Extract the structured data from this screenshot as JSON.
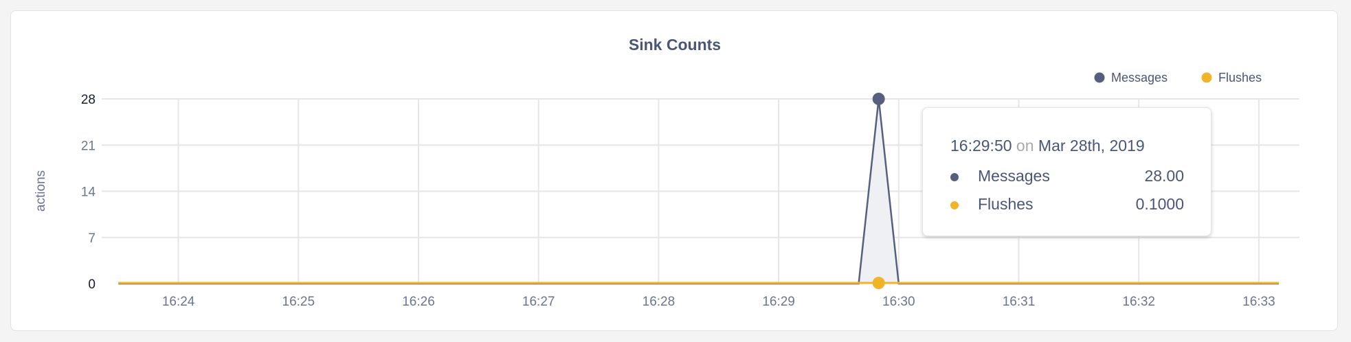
{
  "chart_data": {
    "type": "area",
    "title": "Sink Counts",
    "ylabel": "actions",
    "xlabel": "",
    "ylim": [
      0,
      28
    ],
    "yticks": [
      0,
      7,
      14,
      21,
      28
    ],
    "xticks": [
      "16:24",
      "16:25",
      "16:26",
      "16:27",
      "16:28",
      "16:29",
      "16:30",
      "16:31",
      "16:32",
      "16:33"
    ],
    "xrange": [
      "16:23:30",
      "16:33:10"
    ],
    "grid": true,
    "legend_position": "top-right",
    "x_interval_seconds": 10,
    "series": [
      {
        "name": "Messages",
        "color": "#565f7e",
        "spike_time": "16:29:50",
        "spike_value": 28,
        "baseline": 0
      },
      {
        "name": "Flushes",
        "color": "#f0b429",
        "baseline": 0.1
      }
    ],
    "tooltip": {
      "time": "16:29:50",
      "on": "on",
      "date": "Mar 28th, 2019",
      "rows": [
        {
          "name": "Messages",
          "value": "28.00",
          "color": "#565f7e"
        },
        {
          "name": "Flushes",
          "value": "0.1000",
          "color": "#f0b429"
        }
      ]
    }
  }
}
